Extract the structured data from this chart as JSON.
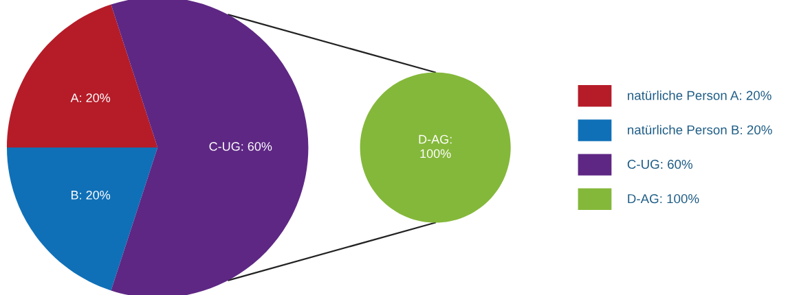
{
  "chart_data": [
    {
      "type": "pie",
      "categories": [
        "natürliche Person A: 20%",
        "natürliche Person B: 20%",
        "C-UG: 60%"
      ],
      "values": [
        20,
        20,
        60
      ],
      "colors": [
        "#b51c28",
        "#0f70b7",
        "#5e2784"
      ],
      "value_labels": [
        "A: 20%",
        "B: 20%",
        "C-UG: 60%"
      ],
      "legend": "right"
    },
    {
      "type": "pie",
      "categories": [
        "D-AG: 100%"
      ],
      "values": [
        100
      ],
      "colors": [
        "#84b83a"
      ],
      "value_labels": [
        "D-AG:\n100%"
      ],
      "legend": "right"
    }
  ]
}
